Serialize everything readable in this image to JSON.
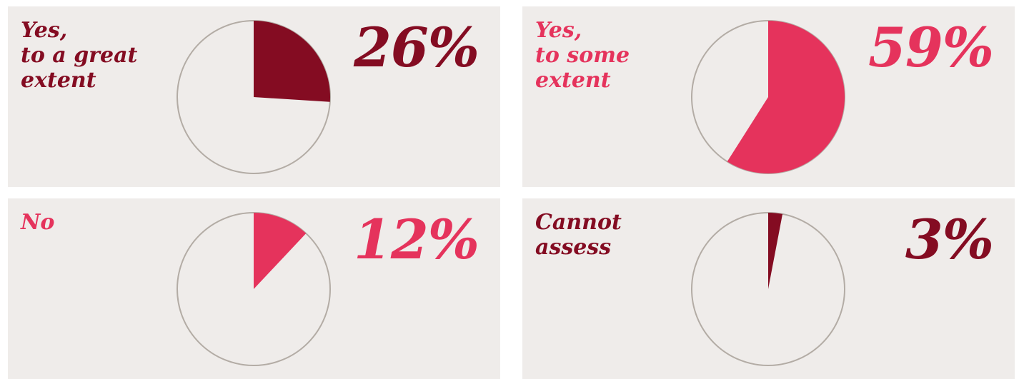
{
  "chart_data": [
    {
      "type": "pie",
      "label": "Yes,\nto a great\nextent",
      "value_text": "26%",
      "value": 26,
      "color": "#840c22"
    },
    {
      "type": "pie",
      "label": "Yes,\nto some\nextent",
      "value_text": "59%",
      "value": 59,
      "color": "#e5335c"
    },
    {
      "type": "pie",
      "label": "No",
      "value_text": "12%",
      "value": 12,
      "color": "#e5335c"
    },
    {
      "type": "pie",
      "label": "Cannot\nassess",
      "value_text": "3%",
      "value": 3,
      "color": "#840c22"
    }
  ],
  "colors": {
    "panel_background": "#efecea",
    "pie_outline": "#b3aca5",
    "pie_empty_fill": "#efecea"
  }
}
